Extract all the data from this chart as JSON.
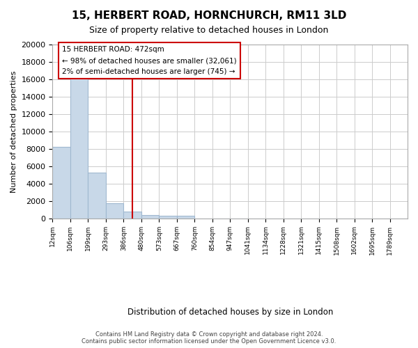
{
  "title": "15, HERBERT ROAD, HORNCHURCH, RM11 3LD",
  "subtitle": "Size of property relative to detached houses in London",
  "xlabel": "Distribution of detached houses by size in London",
  "ylabel": "Number of detached properties",
  "bar_color": "#c8d8e8",
  "bar_edge_color": "#a0b8d0",
  "vline_color": "#cc0000",
  "vline_x": 4.5,
  "annotation_title": "15 HERBERT ROAD: 472sqm",
  "annotation_line1": "← 98% of detached houses are smaller (32,061)",
  "annotation_line2": "2% of semi-detached houses are larger (745) →",
  "bin_labels": [
    "12sqm",
    "106sqm",
    "199sqm",
    "293sqm",
    "386sqm",
    "480sqm",
    "573sqm",
    "667sqm",
    "760sqm",
    "854sqm",
    "947sqm",
    "1041sqm",
    "1134sqm",
    "1228sqm",
    "1321sqm",
    "1415sqm",
    "1508sqm",
    "1602sqm",
    "1695sqm",
    "1789sqm"
  ],
  "bar_heights": [
    8200,
    16500,
    5300,
    1750,
    800,
    380,
    300,
    280,
    0,
    0,
    0,
    0,
    0,
    0,
    0,
    0,
    0,
    0,
    0,
    0
  ],
  "ylim": [
    0,
    20000
  ],
  "yticks": [
    0,
    2000,
    4000,
    6000,
    8000,
    10000,
    12000,
    14000,
    16000,
    18000,
    20000
  ],
  "footer_line1": "Contains HM Land Registry data © Crown copyright and database right 2024.",
  "footer_line2": "Contains public sector information licensed under the Open Government Licence v3.0.",
  "background_color": "#ffffff",
  "grid_color": "#cccccc"
}
